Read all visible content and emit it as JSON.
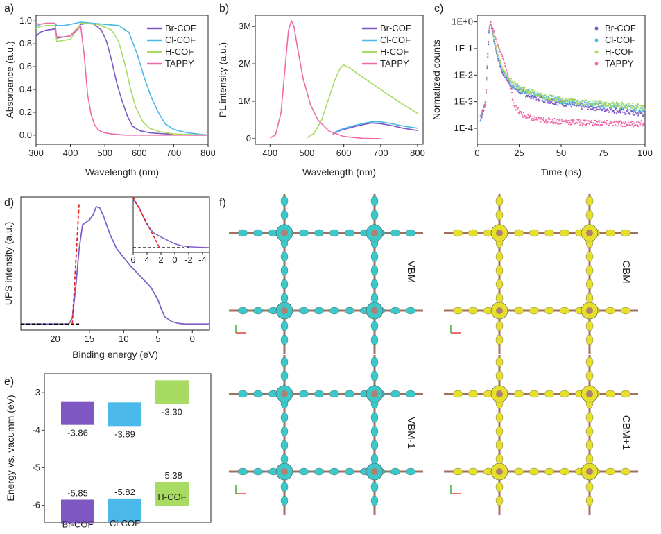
{
  "panel_labels": {
    "a": "a)",
    "b": "b)",
    "c": "c)",
    "d": "d)",
    "e": "e)",
    "f": "f)"
  },
  "colors": {
    "Br-COF": "#7e57c2",
    "Cl-COF": "#4ab8e8",
    "H-COF": "#a8db62",
    "TAPPY": "#f06aa8",
    "fit": "#e82020",
    "baseline": "#000000",
    "ups": "#8060c8",
    "vbm": "#3cc8c8",
    "cbm": "#e6e02a"
  },
  "chart_data": [
    {
      "id": "a",
      "type": "line",
      "xlabel": "Wavelength (nm)",
      "ylabel": "Absorbance (a.u.)",
      "xlim": [
        300,
        800
      ],
      "ylim": [
        -0.08,
        1.05
      ],
      "xticks": [
        "300",
        "400",
        "500",
        "600",
        "700",
        "800"
      ],
      "yticks": [
        "0.0",
        "0.2",
        "0.4",
        "0.6",
        "0.8",
        "1.0"
      ],
      "legend_position": "top-right",
      "series": [
        {
          "name": "Br-COF",
          "x": [
            300,
            310,
            330,
            355,
            360,
            380,
            400,
            430,
            450,
            470,
            490,
            505,
            520,
            535,
            550,
            565,
            580,
            600,
            630,
            680,
            750,
            800
          ],
          "y": [
            0.86,
            0.9,
            0.92,
            0.93,
            0.85,
            0.86,
            0.87,
            0.97,
            0.98,
            0.97,
            0.92,
            0.82,
            0.65,
            0.45,
            0.3,
            0.17,
            0.08,
            0.04,
            0.02,
            0.01,
            0.0,
            0.0
          ]
        },
        {
          "name": "Cl-COF",
          "x": [
            300,
            310,
            330,
            355,
            360,
            380,
            400,
            430,
            500,
            540,
            570,
            595,
            615,
            635,
            655,
            675,
            700,
            740,
            800
          ],
          "y": [
            0.95,
            0.97,
            0.98,
            0.98,
            0.96,
            0.96,
            0.97,
            0.99,
            0.97,
            0.96,
            0.9,
            0.7,
            0.5,
            0.33,
            0.2,
            0.1,
            0.05,
            0.02,
            0.0
          ]
        },
        {
          "name": "H-COF",
          "x": [
            300,
            310,
            330,
            355,
            360,
            380,
            400,
            430,
            480,
            520,
            540,
            560,
            575,
            590,
            610,
            630,
            660,
            700,
            800
          ],
          "y": [
            0.93,
            0.95,
            0.96,
            0.96,
            0.82,
            0.83,
            0.84,
            0.98,
            0.97,
            0.92,
            0.82,
            0.6,
            0.4,
            0.24,
            0.12,
            0.06,
            0.03,
            0.01,
            0.0
          ]
        },
        {
          "name": "TAPPY",
          "x": [
            300,
            310,
            330,
            355,
            360,
            380,
            400,
            430,
            440,
            450,
            460,
            470,
            480,
            490,
            500,
            520,
            560,
            800
          ],
          "y": [
            0.98,
            0.97,
            0.98,
            0.98,
            0.86,
            0.86,
            0.87,
            0.95,
            0.7,
            0.35,
            0.18,
            0.09,
            0.05,
            0.03,
            0.02,
            0.01,
            0.0,
            0.0
          ]
        }
      ]
    },
    {
      "id": "b",
      "type": "line",
      "xlabel": "Wavelength (nm)",
      "ylabel": "PL intensity (a.u.)",
      "xlim": [
        360,
        815
      ],
      "ylim": [
        -0.15,
        3.3
      ],
      "xticks": [
        "400",
        "500",
        "600",
        "700",
        "800"
      ],
      "xtick_values": [
        400,
        500,
        600,
        700,
        800
      ],
      "yticks": [
        "0",
        "1M",
        "2M",
        "3M"
      ],
      "legend_position": "top-right",
      "series": [
        {
          "name": "Br-COF",
          "x": [
            570,
            590,
            620,
            650,
            675,
            700,
            730,
            760,
            800
          ],
          "y": [
            0.12,
            0.22,
            0.3,
            0.37,
            0.42,
            0.4,
            0.35,
            0.28,
            0.22
          ]
        },
        {
          "name": "Cl-COF",
          "x": [
            570,
            590,
            620,
            650,
            675,
            700,
            730,
            760,
            800
          ],
          "y": [
            0.14,
            0.24,
            0.33,
            0.4,
            0.45,
            0.45,
            0.4,
            0.34,
            0.28
          ]
        },
        {
          "name": "H-COF",
          "x": [
            500,
            520,
            540,
            560,
            575,
            590,
            600,
            615,
            640,
            680,
            720,
            760,
            800
          ],
          "y": [
            0.02,
            0.15,
            0.5,
            1.1,
            1.55,
            1.88,
            1.97,
            1.9,
            1.72,
            1.45,
            1.18,
            0.92,
            0.68
          ]
        },
        {
          "name": "TAPPY",
          "x": [
            400,
            415,
            430,
            440,
            450,
            458,
            465,
            475,
            490,
            510,
            530,
            560,
            600,
            650,
            700
          ],
          "y": [
            0.02,
            0.1,
            0.7,
            1.8,
            2.9,
            3.15,
            3.0,
            2.4,
            1.6,
            0.9,
            0.5,
            0.2,
            0.06,
            0.01,
            0.0
          ]
        }
      ]
    },
    {
      "id": "c",
      "type": "scatter",
      "xlabel": "Time (ns)",
      "ylabel": "Normalized counts",
      "xlim": [
        0,
        100
      ],
      "ylim_log10": [
        -4.6,
        0.25
      ],
      "yscale": "log",
      "xticks": [
        "0",
        "25",
        "50",
        "75",
        "100"
      ],
      "yticks": [
        "1E+0",
        "1E-1",
        "1E-2",
        "1E-3",
        "1E-4"
      ],
      "legend_position": "top-right",
      "series": [
        {
          "name": "Br-COF",
          "x": [
            2,
            5,
            7,
            8,
            10,
            12,
            15,
            20,
            25,
            30,
            40,
            50,
            60,
            70,
            80,
            90,
            100
          ],
          "y": [
            0.0002,
            0.0008,
            0.4,
            1.0,
            0.2,
            0.05,
            0.012,
            0.004,
            0.0025,
            0.0018,
            0.0012,
            0.0009,
            0.0007,
            0.0006,
            0.0005,
            0.0004,
            0.00035
          ]
        },
        {
          "name": "Cl-COF",
          "x": [
            2,
            5,
            7,
            8,
            10,
            12,
            15,
            20,
            25,
            30,
            40,
            50,
            60,
            70,
            80,
            90,
            100
          ],
          "y": [
            0.0002,
            0.001,
            0.45,
            1.0,
            0.22,
            0.06,
            0.015,
            0.005,
            0.003,
            0.0022,
            0.0015,
            0.0011,
            0.0009,
            0.0008,
            0.0007,
            0.0006,
            0.0005
          ]
        },
        {
          "name": "H-COF",
          "x": [
            2,
            5,
            7,
            8,
            10,
            12,
            15,
            20,
            25,
            30,
            40,
            50,
            60,
            70,
            80,
            90,
            100
          ],
          "y": [
            0.0003,
            0.001,
            0.5,
            1.0,
            0.25,
            0.07,
            0.018,
            0.006,
            0.0035,
            0.0025,
            0.0016,
            0.0012,
            0.001,
            0.0009,
            0.0008,
            0.0007,
            0.0006
          ]
        },
        {
          "name": "TAPPY",
          "x": [
            2,
            5,
            7,
            8,
            10,
            12,
            15,
            18,
            20,
            22,
            25,
            30,
            40,
            50,
            60,
            70,
            80,
            90,
            100
          ],
          "y": [
            0.0003,
            0.001,
            0.5,
            1.0,
            0.4,
            0.15,
            0.05,
            0.012,
            0.003,
            0.0008,
            0.0004,
            0.00025,
            0.0002,
            0.00018,
            0.00017,
            0.00016,
            0.00015,
            0.00015,
            0.00015
          ]
        }
      ]
    },
    {
      "id": "d",
      "type": "line",
      "xlabel": "Binding energy (eV)",
      "ylabel": "UPS intensity (a.u.)",
      "xlim": [
        25,
        -2.5
      ],
      "ylim": [
        -0.05,
        1.05
      ],
      "xticks": [
        "20",
        "15",
        "10",
        "5",
        "0"
      ],
      "xtick_values": [
        20,
        15,
        10,
        5,
        0
      ],
      "series": [
        {
          "name": "UPS",
          "x": [
            25,
            20,
            18,
            17.5,
            17,
            16.5,
            16,
            15,
            14.5,
            14,
            13.5,
            13,
            12,
            11,
            10,
            9,
            8,
            7,
            6,
            5,
            4.5,
            4,
            3,
            2,
            1,
            0,
            -1,
            -2.5
          ],
          "y": [
            0.0,
            0.0,
            0.0,
            0.05,
            0.3,
            0.62,
            0.82,
            0.86,
            0.9,
            0.97,
            0.96,
            0.9,
            0.74,
            0.62,
            0.55,
            0.48,
            0.42,
            0.36,
            0.3,
            0.2,
            0.12,
            0.06,
            0.02,
            0.005,
            0.0,
            0.0,
            0.0,
            0.0
          ]
        }
      ],
      "fit_line": {
        "x": [
          17.5,
          16.5
        ],
        "y": [
          0.0,
          1.0
        ]
      },
      "baseline": {
        "x": [
          25,
          16.5
        ],
        "y": [
          0.0,
          0.0
        ]
      },
      "inset": {
        "xlim": [
          6,
          -5
        ],
        "ylim": [
          -0.1,
          1.05
        ],
        "xticks": [
          "6",
          "4",
          "2",
          "0",
          "-2",
          "-4"
        ],
        "xtick_values": [
          6,
          4,
          2,
          0,
          -2,
          -4
        ],
        "curve": {
          "x": [
            6,
            5,
            4.5,
            4,
            3.5,
            3,
            2,
            1,
            0,
            -1,
            -2,
            -3,
            -5
          ],
          "y": [
            1.0,
            0.8,
            0.62,
            0.48,
            0.38,
            0.3,
            0.22,
            0.15,
            0.08,
            0.04,
            0.02,
            0.01,
            0.0
          ]
        },
        "fit_line": {
          "x": [
            6,
            2.2
          ],
          "y": [
            1.05,
            0.0
          ]
        },
        "baseline": {
          "x": [
            6,
            -2
          ],
          "y": [
            0.0,
            0.0
          ]
        }
      }
    },
    {
      "id": "e",
      "type": "bar",
      "ylabel": "Energy vs. vacumm (eV)",
      "ylim": [
        -6.45,
        -2.5
      ],
      "yticks": [
        "-3",
        "-4",
        "-5",
        "-6"
      ],
      "ytick_values": [
        -3,
        -4,
        -5,
        -6
      ],
      "categories": [
        "Br-COF",
        "Cl-COF",
        "H-COF"
      ],
      "cb_values": [
        -3.86,
        -3.89,
        -3.3
      ],
      "vb_values": [
        -5.85,
        -5.82,
        -5.38
      ],
      "cb_labels": [
        "-3.86",
        "-3.89",
        "-3.30"
      ],
      "vb_labels": [
        "-5.85",
        "-5.82",
        "-5.38"
      ]
    }
  ],
  "panel_f": {
    "labels": [
      "VBM",
      "CBM",
      "VBM-1",
      "CBM+1"
    ]
  }
}
